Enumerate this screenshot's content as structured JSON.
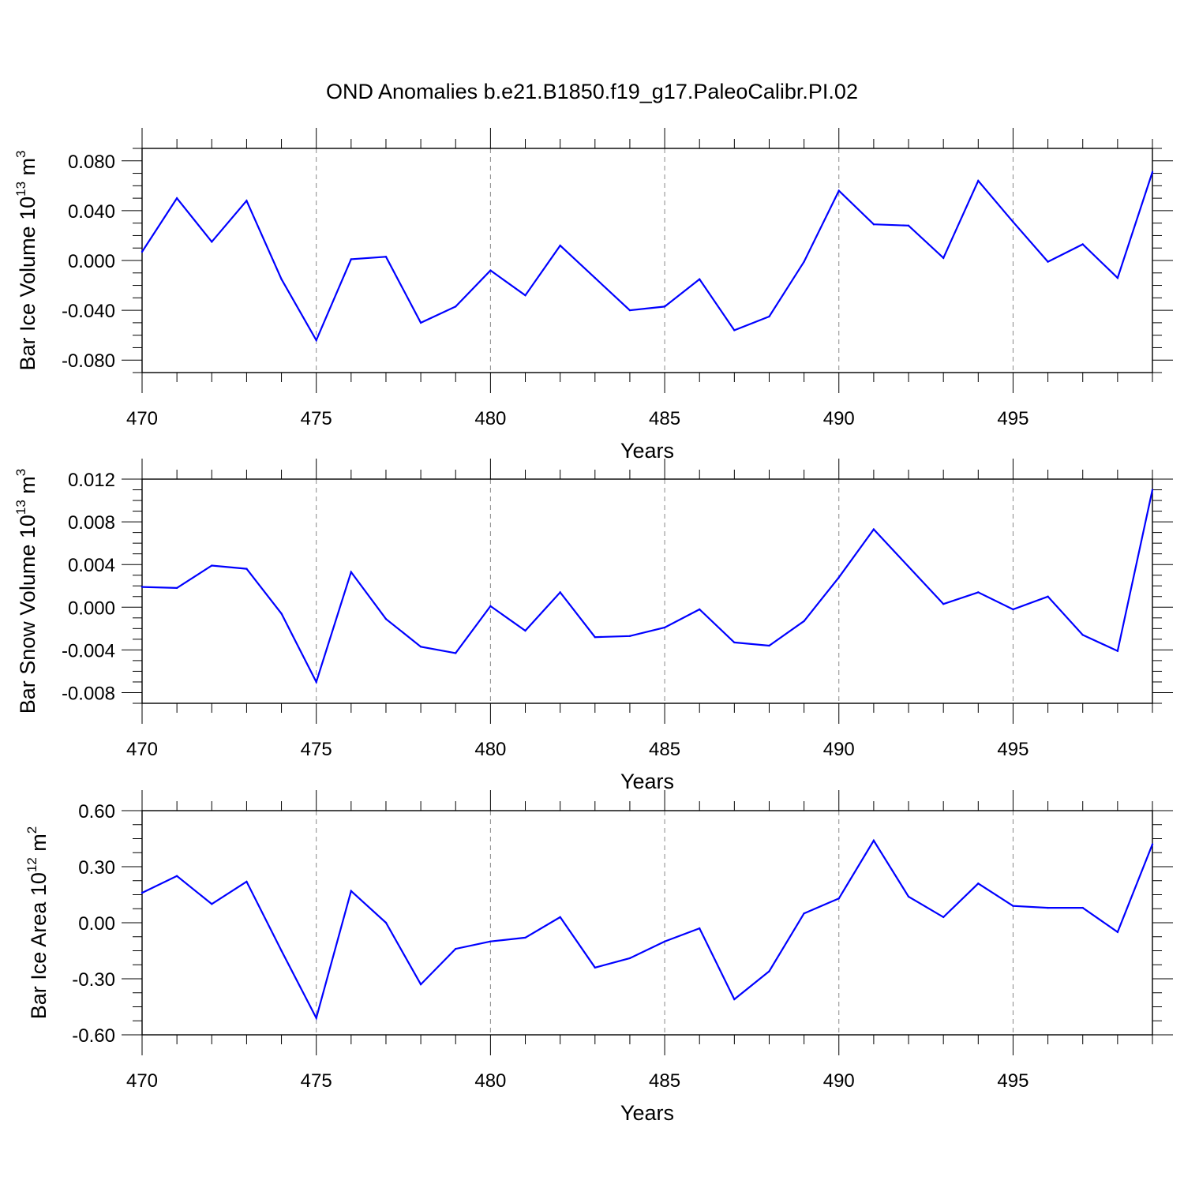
{
  "title": "OND Anomalies b.e21.B1850.f19_g17.PaleoCalibr.PI.02",
  "line_color": "#0000ff",
  "chart_data": [
    {
      "type": "line",
      "xlabel": "Years",
      "ylabel": {
        "base": "Bar Ice Volume 10",
        "exp": "13",
        "unit": " m",
        "unit_exp": "3"
      },
      "xlim": [
        470,
        499
      ],
      "ylim": [
        -0.09,
        0.09
      ],
      "xticks": [
        470,
        475,
        480,
        485,
        490,
        495
      ],
      "xtick_labels": [
        "470",
        "475",
        "480",
        "485",
        "490",
        "495"
      ],
      "yticks": [
        -0.08,
        -0.04,
        0.0,
        0.04,
        0.08
      ],
      "ytick_labels": [
        "-0.080",
        "-0.040",
        "0.000",
        "0.040",
        "0.080"
      ],
      "x": [
        470,
        471,
        472,
        473,
        474,
        475,
        476,
        477,
        478,
        479,
        480,
        481,
        482,
        483,
        484,
        485,
        486,
        487,
        488,
        489,
        490,
        491,
        492,
        493,
        494,
        495,
        496,
        497,
        498,
        499
      ],
      "values": [
        0.007,
        0.05,
        0.015,
        0.048,
        -0.015,
        -0.064,
        0.001,
        0.003,
        -0.05,
        -0.037,
        -0.008,
        -0.028,
        0.012,
        -0.014,
        -0.04,
        -0.037,
        -0.015,
        -0.056,
        -0.045,
        -0.001,
        0.056,
        0.029,
        0.028,
        0.002,
        0.064,
        0.031,
        -0.001,
        0.013,
        -0.014,
        0.071
      ]
    },
    {
      "type": "line",
      "xlabel": "Years",
      "ylabel": {
        "base": "Bar Snow Volume 10",
        "exp": "13",
        "unit": " m",
        "unit_exp": "3"
      },
      "xlim": [
        470,
        499
      ],
      "ylim": [
        -0.009,
        0.012
      ],
      "xticks": [
        470,
        475,
        480,
        485,
        490,
        495
      ],
      "xtick_labels": [
        "470",
        "475",
        "480",
        "485",
        "490",
        "495"
      ],
      "yticks": [
        -0.008,
        -0.004,
        0.0,
        0.004,
        0.008,
        0.012
      ],
      "ytick_labels": [
        "-0.008",
        "-0.004",
        "0.000",
        "0.004",
        "0.008",
        "0.012"
      ],
      "x": [
        470,
        471,
        472,
        473,
        474,
        475,
        476,
        477,
        478,
        479,
        480,
        481,
        482,
        483,
        484,
        485,
        486,
        487,
        488,
        489,
        490,
        491,
        492,
        493,
        494,
        495,
        496,
        497,
        498,
        499
      ],
      "values": [
        0.0019,
        0.0018,
        0.0039,
        0.0036,
        -0.0006,
        -0.007,
        0.0033,
        -0.0011,
        -0.0037,
        -0.0043,
        0.0001,
        -0.0022,
        0.0014,
        -0.0028,
        -0.0027,
        -0.0019,
        -0.0002,
        -0.0033,
        -0.0036,
        -0.0013,
        0.0028,
        0.0073,
        0.0038,
        0.0003,
        0.0014,
        -0.0002,
        0.001,
        -0.0026,
        -0.0041,
        0.011
      ]
    },
    {
      "type": "line",
      "xlabel": "Years",
      "ylabel": {
        "base": "Bar Ice Area 10",
        "exp": "12",
        "unit": " m",
        "unit_exp": "2"
      },
      "xlim": [
        470,
        499
      ],
      "ylim": [
        -0.6,
        0.6
      ],
      "xticks": [
        470,
        475,
        480,
        485,
        490,
        495
      ],
      "xtick_labels": [
        "470",
        "475",
        "480",
        "485",
        "490",
        "495"
      ],
      "yticks": [
        -0.6,
        -0.3,
        0.0,
        0.3,
        0.6
      ],
      "ytick_labels": [
        "-0.60",
        "-0.30",
        "0.00",
        "0.30",
        "0.60"
      ],
      "x": [
        470,
        471,
        472,
        473,
        474,
        475,
        476,
        477,
        478,
        479,
        480,
        481,
        482,
        483,
        484,
        485,
        486,
        487,
        488,
        489,
        490,
        491,
        492,
        493,
        494,
        495,
        496,
        497,
        498,
        499
      ],
      "values": [
        0.16,
        0.25,
        0.1,
        0.22,
        -0.15,
        -0.51,
        0.17,
        0.0,
        -0.33,
        -0.14,
        -0.1,
        -0.08,
        0.03,
        -0.24,
        -0.19,
        -0.1,
        -0.03,
        -0.41,
        -0.26,
        0.05,
        0.13,
        0.44,
        0.14,
        0.03,
        0.21,
        0.09,
        0.08,
        0.08,
        -0.05,
        0.42
      ]
    }
  ]
}
